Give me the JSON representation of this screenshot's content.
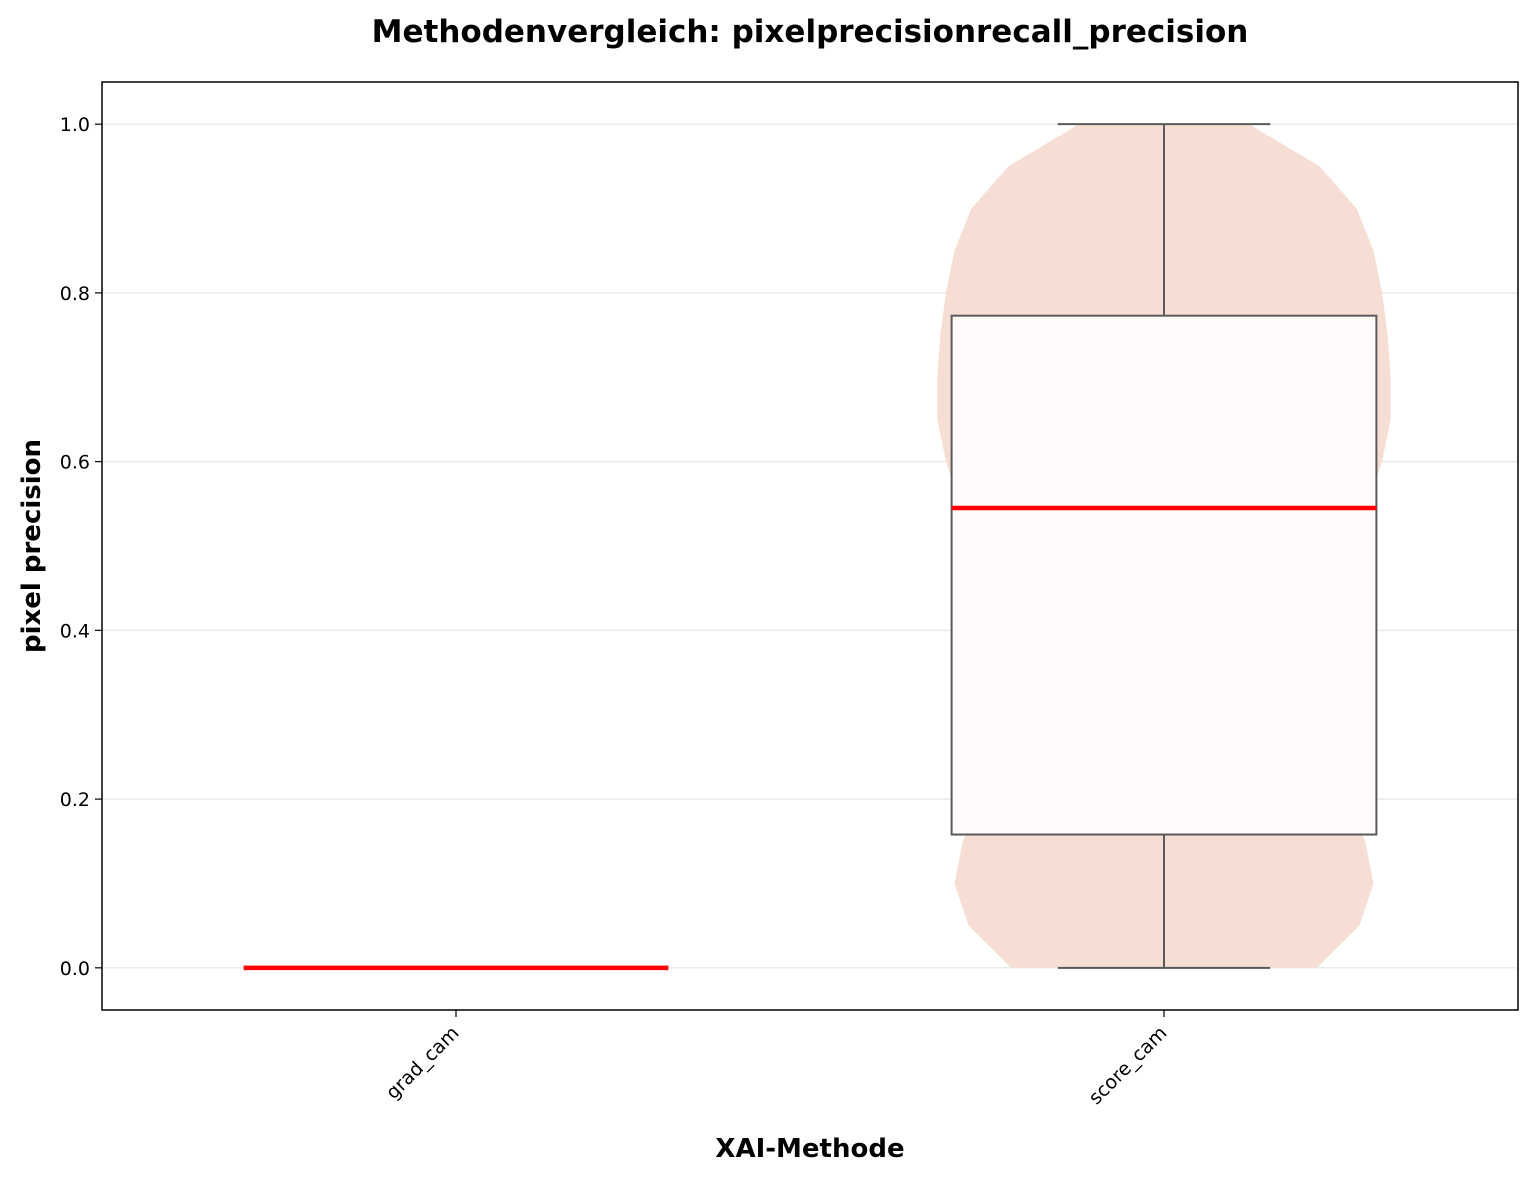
{
  "chart_data": {
    "type": "violin+box",
    "title": "Methodenvergleich: pixelprecisionrecall_precision",
    "xlabel": "XAI-Methode",
    "ylabel": "pixel precision",
    "ylim": [
      -0.05,
      1.05
    ],
    "yticks": [
      0.0,
      0.2,
      0.4,
      0.6,
      0.8,
      1.0
    ],
    "ytick_labels": [
      "0.0",
      "0.2",
      "0.4",
      "0.6",
      "0.8",
      "1.0"
    ],
    "grid": "horizontal",
    "categories": [
      "grad_cam",
      "score_cam"
    ],
    "series": [
      {
        "category": "grad_cam",
        "whisker_low": 0.0,
        "q1": 0.0,
        "median": 0.0,
        "q3": 0.0,
        "whisker_high": 0.0,
        "violin": []
      },
      {
        "category": "score_cam",
        "whisker_low": 0.0,
        "q1": 0.158,
        "median": 0.545,
        "q3": 0.773,
        "whisker_high": 1.0,
        "violin": [
          [
            0.0,
            0.54
          ],
          [
            0.05,
            0.69
          ],
          [
            0.1,
            0.74
          ],
          [
            0.15,
            0.71
          ],
          [
            0.2,
            0.64
          ],
          [
            0.25,
            0.56
          ],
          [
            0.3,
            0.5
          ],
          [
            0.35,
            0.48
          ],
          [
            0.4,
            0.51
          ],
          [
            0.45,
            0.57
          ],
          [
            0.5,
            0.65
          ],
          [
            0.55,
            0.72
          ],
          [
            0.6,
            0.77
          ],
          [
            0.65,
            0.8
          ],
          [
            0.7,
            0.8
          ],
          [
            0.75,
            0.79
          ],
          [
            0.8,
            0.77
          ],
          [
            0.85,
            0.74
          ],
          [
            0.9,
            0.68
          ],
          [
            0.95,
            0.55
          ],
          [
            1.0,
            0.3
          ]
        ]
      }
    ],
    "colors": {
      "violin_fill": "#f7ded5",
      "box_fill": "#fffaf9",
      "box_stroke": "#5a5a5a",
      "median": "#ff0000",
      "grid": "#e6e6e6"
    }
  }
}
